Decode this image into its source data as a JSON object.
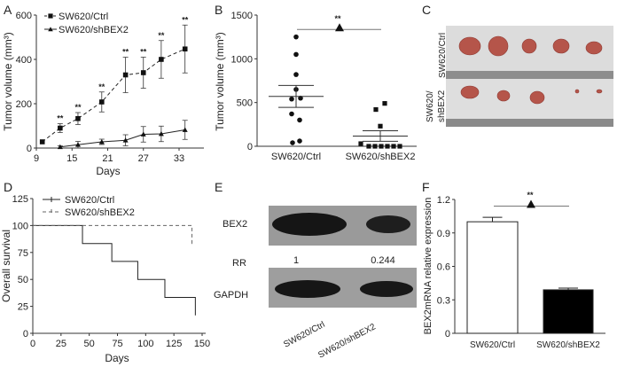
{
  "panel_letters": {
    "A": "A",
    "B": "B",
    "C": "C",
    "D": "D",
    "E": "E",
    "F": "F"
  },
  "chart_data": [
    {
      "panel": "A",
      "type": "line",
      "xlabel": "Days",
      "ylabel": "Tumor volume (mm³)",
      "xlim": [
        9,
        37
      ],
      "ylim": [
        0,
        600
      ],
      "xticks": [
        9,
        15,
        21,
        27,
        33
      ],
      "yticks": [
        0,
        200,
        400,
        600
      ],
      "legend_position": "top-left",
      "significance": "**",
      "series": [
        {
          "name": "SW620/Ctrl",
          "marker": "square",
          "dash": true,
          "x": [
            10,
            13,
            16,
            20,
            24,
            27,
            30,
            34
          ],
          "y": [
            28,
            90,
            133,
            208,
            330,
            340,
            400,
            447
          ],
          "err": [
            0,
            20,
            27,
            45,
            80,
            70,
            85,
            108
          ],
          "sig": [
            false,
            true,
            true,
            true,
            true,
            true,
            true,
            true
          ]
        },
        {
          "name": "SW620/shBEX2",
          "marker": "triangle",
          "dash": false,
          "x": [
            13,
            16,
            20,
            24,
            27,
            30,
            34
          ],
          "y": [
            5,
            15,
            28,
            35,
            62,
            64,
            82
          ],
          "err": [
            5,
            15,
            12,
            25,
            35,
            35,
            43
          ]
        }
      ]
    },
    {
      "panel": "B",
      "type": "scatter",
      "ylabel": "Tumor volume (mm³)",
      "ylim": [
        0,
        1500
      ],
      "yticks": [
        0,
        500,
        1000,
        1500
      ],
      "categories": [
        "SW620/Ctrl",
        "SW620/shBEX2"
      ],
      "significance": "**",
      "series": [
        {
          "name": "SW620/Ctrl",
          "marker": "circle",
          "values": [
            1250,
            1050,
            820,
            650,
            550,
            540,
            370,
            300,
            60,
            40
          ],
          "mean": 570,
          "sem": 125
        },
        {
          "name": "SW620/shBEX2",
          "marker": "square",
          "values": [
            490,
            420,
            230,
            30,
            0,
            0,
            0,
            0,
            0,
            0
          ],
          "mean": 117,
          "sem": 60
        }
      ]
    },
    {
      "panel": "D",
      "type": "line",
      "subtype": "kaplan-meier",
      "xlabel": "Days",
      "ylabel": "Overall survival",
      "xlim": [
        0,
        150
      ],
      "ylim": [
        0,
        125
      ],
      "xticks": [
        0,
        25,
        50,
        75,
        100,
        125,
        150
      ],
      "yticks": [
        0,
        25,
        50,
        75,
        100,
        125
      ],
      "legend_position": "top",
      "series": [
        {
          "name": "SW620/Ctrl",
          "dash": false,
          "x": [
            0,
            44,
            70,
            93,
            117,
            144
          ],
          "y": [
            100,
            83.3,
            66.7,
            50,
            33.3,
            16.7
          ]
        },
        {
          "name": "SW620/shBEX2",
          "dash": true,
          "x": [
            0,
            141,
            143
          ],
          "y": [
            100,
            83.3,
            83.3
          ]
        }
      ]
    },
    {
      "panel": "F",
      "type": "bar",
      "ylabel": "BEX2mRNA relative expression",
      "ylim": [
        0,
        1.2
      ],
      "yticks": [
        0,
        0.3,
        0.6,
        0.9,
        1.2
      ],
      "categories": [
        "SW620/Ctrl",
        "SW620/shBEX2"
      ],
      "values": [
        1.0,
        0.39
      ],
      "err": [
        0.04,
        0.015
      ],
      "colors": [
        "#ffffff",
        "#000000"
      ],
      "significance": "**"
    }
  ],
  "panel_c": {
    "row_labels": [
      "SW620/Ctrl",
      "SW620/",
      "shBEX2"
    ]
  },
  "panel_e": {
    "bands": [
      "BEX2",
      "GAPDH"
    ],
    "rr_label": "RR",
    "rr_values": [
      "1",
      "0.244"
    ],
    "lanes": [
      "SW620/Ctrl",
      "SW620/shBEX2"
    ]
  }
}
